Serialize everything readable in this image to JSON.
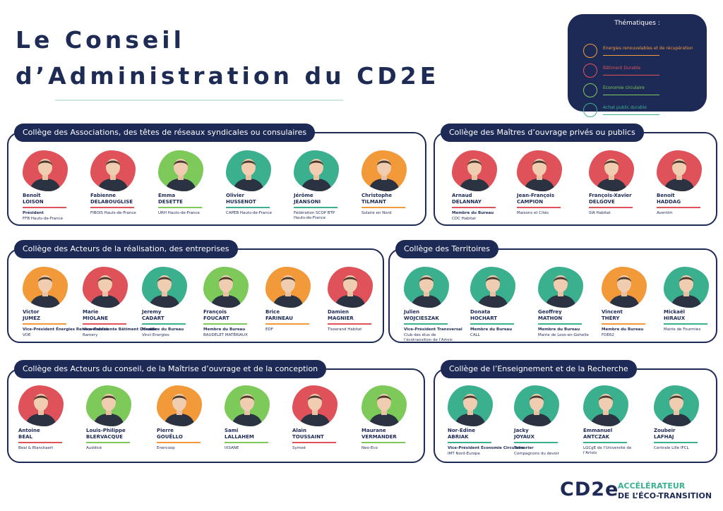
{
  "title": {
    "line1": "Le Conseil",
    "line2": "d’Administration du CD2E"
  },
  "legend": {
    "title": "Thématiques :",
    "items": [
      {
        "label": "Energies renouvelables et de récupération",
        "color": "#f29a3a",
        "icon": "sun-icon"
      },
      {
        "label": "Bâtiment Durable",
        "color": "#e0525a",
        "icon": "house-icon"
      },
      {
        "label": "Economie circulaire",
        "color": "#7dc95a",
        "icon": "recycle-icon"
      },
      {
        "label": "Achat public durable",
        "color": "#3bb08f",
        "icon": "euro-icon"
      }
    ]
  },
  "sections": [
    {
      "title": "Collège des Associations, des têtes de réseaux syndicales ou consulaires",
      "people": [
        {
          "first": "Benoît",
          "last": "LOISON",
          "role": "Président",
          "org": "FFB Hauts-de-France",
          "color": "#e0525a",
          "icon": "person-icon"
        },
        {
          "first": "Fabienne",
          "last": "DELABOUGLISE",
          "role": "",
          "org": "FIBOIS Hauts-de-France",
          "color": "#e0525a",
          "icon": "person-icon"
        },
        {
          "first": "Emma",
          "last": "DESETTE",
          "role": "",
          "org": "URH Hauts-de-France",
          "color": "#7dc95a",
          "icon": "person-icon"
        },
        {
          "first": "Olivier",
          "last": "HUSSENOT",
          "role": "",
          "org": "CAPEB Hauts-de-France",
          "color": "#3bb08f",
          "icon": "person-icon"
        },
        {
          "first": "Jérôme",
          "last": "JEANSONI",
          "role": "",
          "org": "Fédération SCOP BTP Hauts-de-France",
          "color": "#3bb08f",
          "icon": "person-icon"
        },
        {
          "first": "Christophe",
          "last": "TILMANT",
          "role": "",
          "org": "Solaire en Nord",
          "color": "#f29a3a",
          "icon": "person-icon"
        }
      ]
    },
    {
      "title": "Collège des Maîtres d’ouvrage privés ou publics",
      "people": [
        {
          "first": "Arnaud",
          "last": "DELANNAY",
          "role": "Membre du Bureau",
          "org": "CDC Habitat",
          "color": "#e0525a",
          "icon": "person-icon"
        },
        {
          "first": "Jean-François",
          "last": "CAMPION",
          "role": "",
          "org": "Maisons et Cités",
          "color": "#e0525a",
          "icon": "person-icon"
        },
        {
          "first": "François-Xavier",
          "last": "DELGOVE",
          "role": "",
          "org": "SIA Habitat",
          "color": "#e0525a",
          "icon": "person-icon"
        },
        {
          "first": "Benoit",
          "last": "HADDAG",
          "role": "",
          "org": "Aventim",
          "color": "#e0525a",
          "icon": "person-icon"
        }
      ]
    },
    {
      "title": "Collège des Acteurs de la réalisation, des entreprises",
      "people": [
        {
          "first": "Victor",
          "last": "JUMEZ",
          "role": "Vice-Président Énergies Renouvelables",
          "org": "VOE",
          "color": "#f29a3a",
          "icon": "person-icon"
        },
        {
          "first": "Marie",
          "last": "MIOLANE",
          "role": "Vice-Présidente Bâtiment Durable",
          "org": "Ramery",
          "color": "#e0525a",
          "icon": "person-icon"
        },
        {
          "first": "Jeremy",
          "last": "CADART",
          "role": "Membre du Bureau",
          "org": "Vinci Energies",
          "color": "#3bb08f",
          "icon": "person-icon"
        },
        {
          "first": "François",
          "last": "FOUCART",
          "role": "Membre du Bureau",
          "org": "BAUDELET MATÉRIAUX",
          "color": "#7dc95a",
          "icon": "person-icon"
        },
        {
          "first": "Brice",
          "last": "FARINEAU",
          "role": "",
          "org": "EDF",
          "color": "#f29a3a",
          "icon": "person-icon"
        },
        {
          "first": "Damien",
          "last": "MAGNIER",
          "role": "",
          "org": "Tisserand Habitat",
          "color": "#e0525a",
          "icon": "person-icon"
        }
      ]
    },
    {
      "title": "Collège des Territoires",
      "people": [
        {
          "first": "Julien",
          "last": "WOJCIESZAK",
          "role": "Vice-Président Transversal",
          "org": "Club des élus de l’écotransition de l’Artois",
          "color": "#3bb08f",
          "icon": "person-icon"
        },
        {
          "first": "Donata",
          "last": "HOCHART",
          "role": "Membre du Bureau",
          "org": "CALL",
          "color": "#3bb08f",
          "icon": "person-icon"
        },
        {
          "first": "Geoffrey",
          "last": "MATHON",
          "role": "Membre du Bureau",
          "org": "Mairie de Loos-en-Gohelle",
          "color": "#3bb08f",
          "icon": "person-icon"
        },
        {
          "first": "Vincent",
          "last": "THÉRY",
          "role": "Membre du Bureau",
          "org": "FDE62",
          "color": "#f29a3a",
          "icon": "person-icon"
        },
        {
          "first": "Mickaël",
          "last": "HIRAUX",
          "role": "",
          "org": "Mairie de Fourmies",
          "color": "#3bb08f",
          "icon": "person-icon"
        }
      ]
    },
    {
      "title": "Collège des Acteurs du conseil, de la Maîtrise d’ouvrage et de la conception",
      "people": [
        {
          "first": "Antoine",
          "last": "BEAL",
          "role": "",
          "org": "Beal & Blanckaert",
          "color": "#e0525a",
          "icon": "person-icon"
        },
        {
          "first": "Louis-Philippe",
          "last": "BLERVACQUE",
          "role": "",
          "org": "Auddicé",
          "color": "#7dc95a",
          "icon": "person-icon"
        },
        {
          "first": "Pierre",
          "last": "GOUËLLO",
          "role": "",
          "org": "Enercoop",
          "color": "#f29a3a",
          "icon": "person-icon"
        },
        {
          "first": "Sami",
          "last": "LALLAHEM",
          "role": "",
          "org": "IXSANE",
          "color": "#7dc95a",
          "icon": "person-icon"
        },
        {
          "first": "Alain",
          "last": "TOUSSAINT",
          "role": "",
          "org": "Symoé",
          "color": "#e0525a",
          "icon": "person-icon"
        },
        {
          "first": "Maurane",
          "last": "VERMANDER",
          "role": "",
          "org": "Neo-Eco",
          "color": "#7dc95a",
          "icon": "person-icon"
        }
      ]
    },
    {
      "title": "Collège de l’Enseignement et de la Recherche",
      "people": [
        {
          "first": "Nor-Edine",
          "last": "ABRIAK",
          "role": "Vice-Président Économie Circulaire",
          "org": "IMT Nord-Europe",
          "color": "#3bb08f",
          "icon": "person-icon"
        },
        {
          "first": "Jacky",
          "last": "JOYAUX",
          "role": "Trésorier",
          "org": "Compagnons du devoir",
          "color": "#3bb08f",
          "icon": "person-icon"
        },
        {
          "first": "Emmanuel",
          "last": "ANTCZAK",
          "role": "",
          "org": "LGCgE de l’Université de l’Artois",
          "color": "#3bb08f",
          "icon": "person-icon"
        },
        {
          "first": "Zoubeir",
          "last": "LAFHAJ",
          "role": "",
          "org": "Centrale Lille IFCL",
          "color": "#3bb08f",
          "icon": "person-icon"
        }
      ]
    }
  ],
  "logo": {
    "mark": "CD2e",
    "tagline1": "ACCÉLÉRATEUR",
    "tagline2": "DE L’ÉCO-TRANSITION"
  }
}
